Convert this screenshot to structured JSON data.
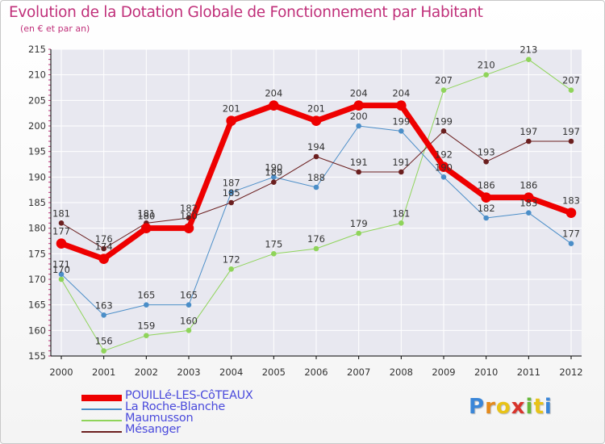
{
  "colors": {
    "title": "#c0307a",
    "axis": "#000000",
    "grid": "#ffffff",
    "tick_marks": "#c0307a"
  },
  "chart_data": {
    "type": "line",
    "title": "Evolution de la Dotation Globale de Fonctionnement par Habitant",
    "subtitle": "(en € et par an)",
    "xlabel": "",
    "ylabel": "",
    "x": [
      "2000",
      "2001",
      "2002",
      "2003",
      "2004",
      "2005",
      "2006",
      "2007",
      "2008",
      "2009",
      "2010",
      "2011",
      "2012"
    ],
    "ylim": [
      155,
      215
    ],
    "yticks": [
      "155",
      "160",
      "165",
      "170",
      "175",
      "180",
      "185",
      "190",
      "195",
      "200",
      "205",
      "210",
      "215"
    ],
    "series": [
      {
        "name": "POUILLé-LES-CôTEAUX",
        "color": "#ee0000",
        "width": 7,
        "marker_radius": 6,
        "values": [
          177,
          174,
          180,
          180,
          201,
          204,
          201,
          204,
          204,
          192,
          186,
          186,
          183
        ]
      },
      {
        "name": "La Roche-Blanche",
        "color": "#4b8ec8",
        "width": 1,
        "marker_radius": 3,
        "values": [
          171,
          163,
          165,
          165,
          187,
          190,
          188,
          200,
          199,
          190,
          182,
          183,
          177
        ]
      },
      {
        "name": "Maumusson",
        "color": "#8fd45a",
        "width": 1,
        "marker_radius": 3,
        "values": [
          170,
          156,
          159,
          160,
          172,
          175,
          176,
          179,
          181,
          207,
          210,
          213,
          207
        ]
      },
      {
        "name": "Mésanger",
        "color": "#6b1f1f",
        "width": 1,
        "marker_radius": 3,
        "values": [
          181,
          176,
          181,
          182,
          185,
          189,
          194,
          191,
          191,
          199,
          193,
          197,
          197
        ]
      }
    ],
    "draw_order": [
      2,
      1,
      3,
      0
    ],
    "legend": "bottom-left"
  },
  "brand": {
    "letters": [
      "P",
      "r",
      "o",
      "x",
      "i",
      "t",
      "i"
    ],
    "colors": [
      "#3a86d8",
      "#e48a1c",
      "#e8c318",
      "#d8342c",
      "#66b83a",
      "#e8c318",
      "#3a86d8"
    ]
  }
}
